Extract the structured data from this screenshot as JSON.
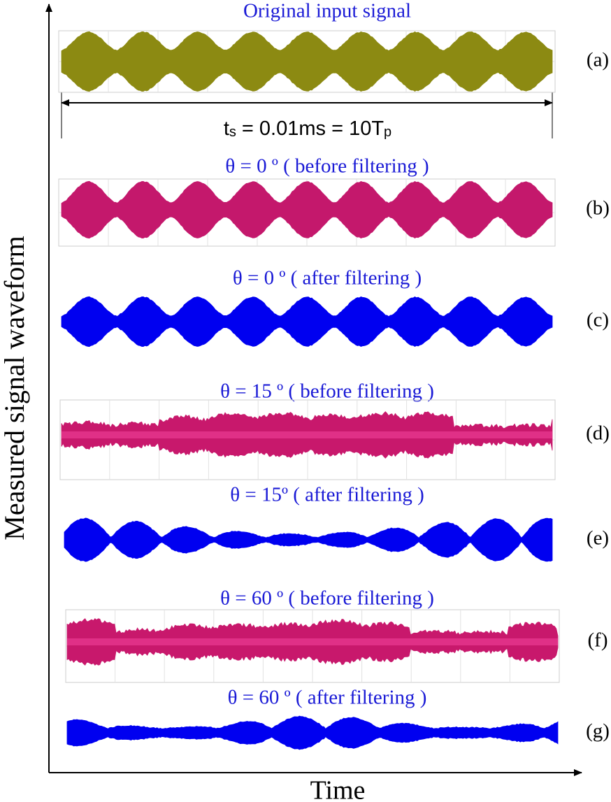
{
  "y_axis_label": "Measured signal waveform",
  "x_axis_label": "Time",
  "span_label": [
    "t",
    "s",
    " = 0.01ms = 10T",
    "p"
  ],
  "panels": [
    {
      "title": "Original input signal",
      "label": "(a)"
    },
    {
      "title": "θ = 0 º ( before filtering )",
      "label": "(b)"
    },
    {
      "title": "θ = 0 º ( after filtering )",
      "label": "(c)"
    },
    {
      "title": "θ = 15 º ( before filtering )",
      "label": "(d)"
    },
    {
      "title": "θ = 15º ( after filtering )",
      "label": "(e)"
    },
    {
      "title": "θ = 60 º ( before filtering )",
      "label": "(f)"
    },
    {
      "title": "θ = 60 º ( after filtering )",
      "label": "(g)"
    }
  ]
}
